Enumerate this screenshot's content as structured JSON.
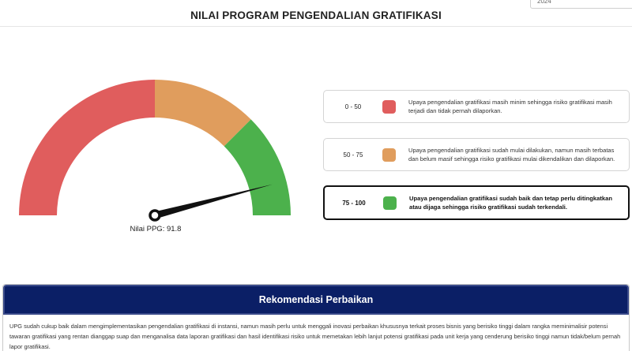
{
  "filter": {
    "year_value": "2024"
  },
  "page": {
    "title": "NILAI PROGRAM PENGENDALIAN GRATIFIKASI"
  },
  "gauge": {
    "value": 91.8,
    "min": 0,
    "max": 100,
    "label": "Nilai PPG: 91.8",
    "segments": [
      {
        "from": 0,
        "to": 50,
        "color": "#e05d5d"
      },
      {
        "from": 50,
        "to": 75,
        "color": "#e09d5d"
      },
      {
        "from": 75,
        "to": 100,
        "color": "#4cb14c"
      }
    ]
  },
  "legend": [
    {
      "range": "0 - 50",
      "color": "#e05d5d",
      "description": "Upaya pengendalian gratifikasi masih minim sehingga risiko gratifikasi masih terjadi dan tidak pernah dilaporkan.",
      "active": false
    },
    {
      "range": "50 - 75",
      "color": "#e09d5d",
      "description": "Upaya pengendalian gratifikasi sudah mulai dilakukan, namun masih terbatas dan belum masif sehingga risiko gratifikasi mulai dikendalikan dan dilaporkan.",
      "active": false
    },
    {
      "range": "75 - 100",
      "color": "#4cb14c",
      "description": "Upaya pengendalian gratifikasi sudah baik dan tetap perlu ditingkatkan atau dijaga sehingga risiko gratifikasi sudah terkendali.",
      "active": true
    }
  ],
  "recommendation": {
    "title": "Rekomendasi Perbaikan",
    "text": "UPG sudah cukup baik dalam mengimplementasikan pengendalian gratifikasi di instansi, namun masih perlu untuk menggali inovasi perbaikan khususnya terkait proses bisnis yang berisiko tinggi dalam rangka meminimalisir potensi tawaran gratifikasi yang rentan dianggap suap dan menganalisa data laporan gratifikasi dan hasil identifikasi risiko untuk memetakan lebih lanjut potensi gratifikasi pada unit kerja yang cenderung berisiko tinggi namun tidak/belum pernah lapor gratifikasi."
  }
}
